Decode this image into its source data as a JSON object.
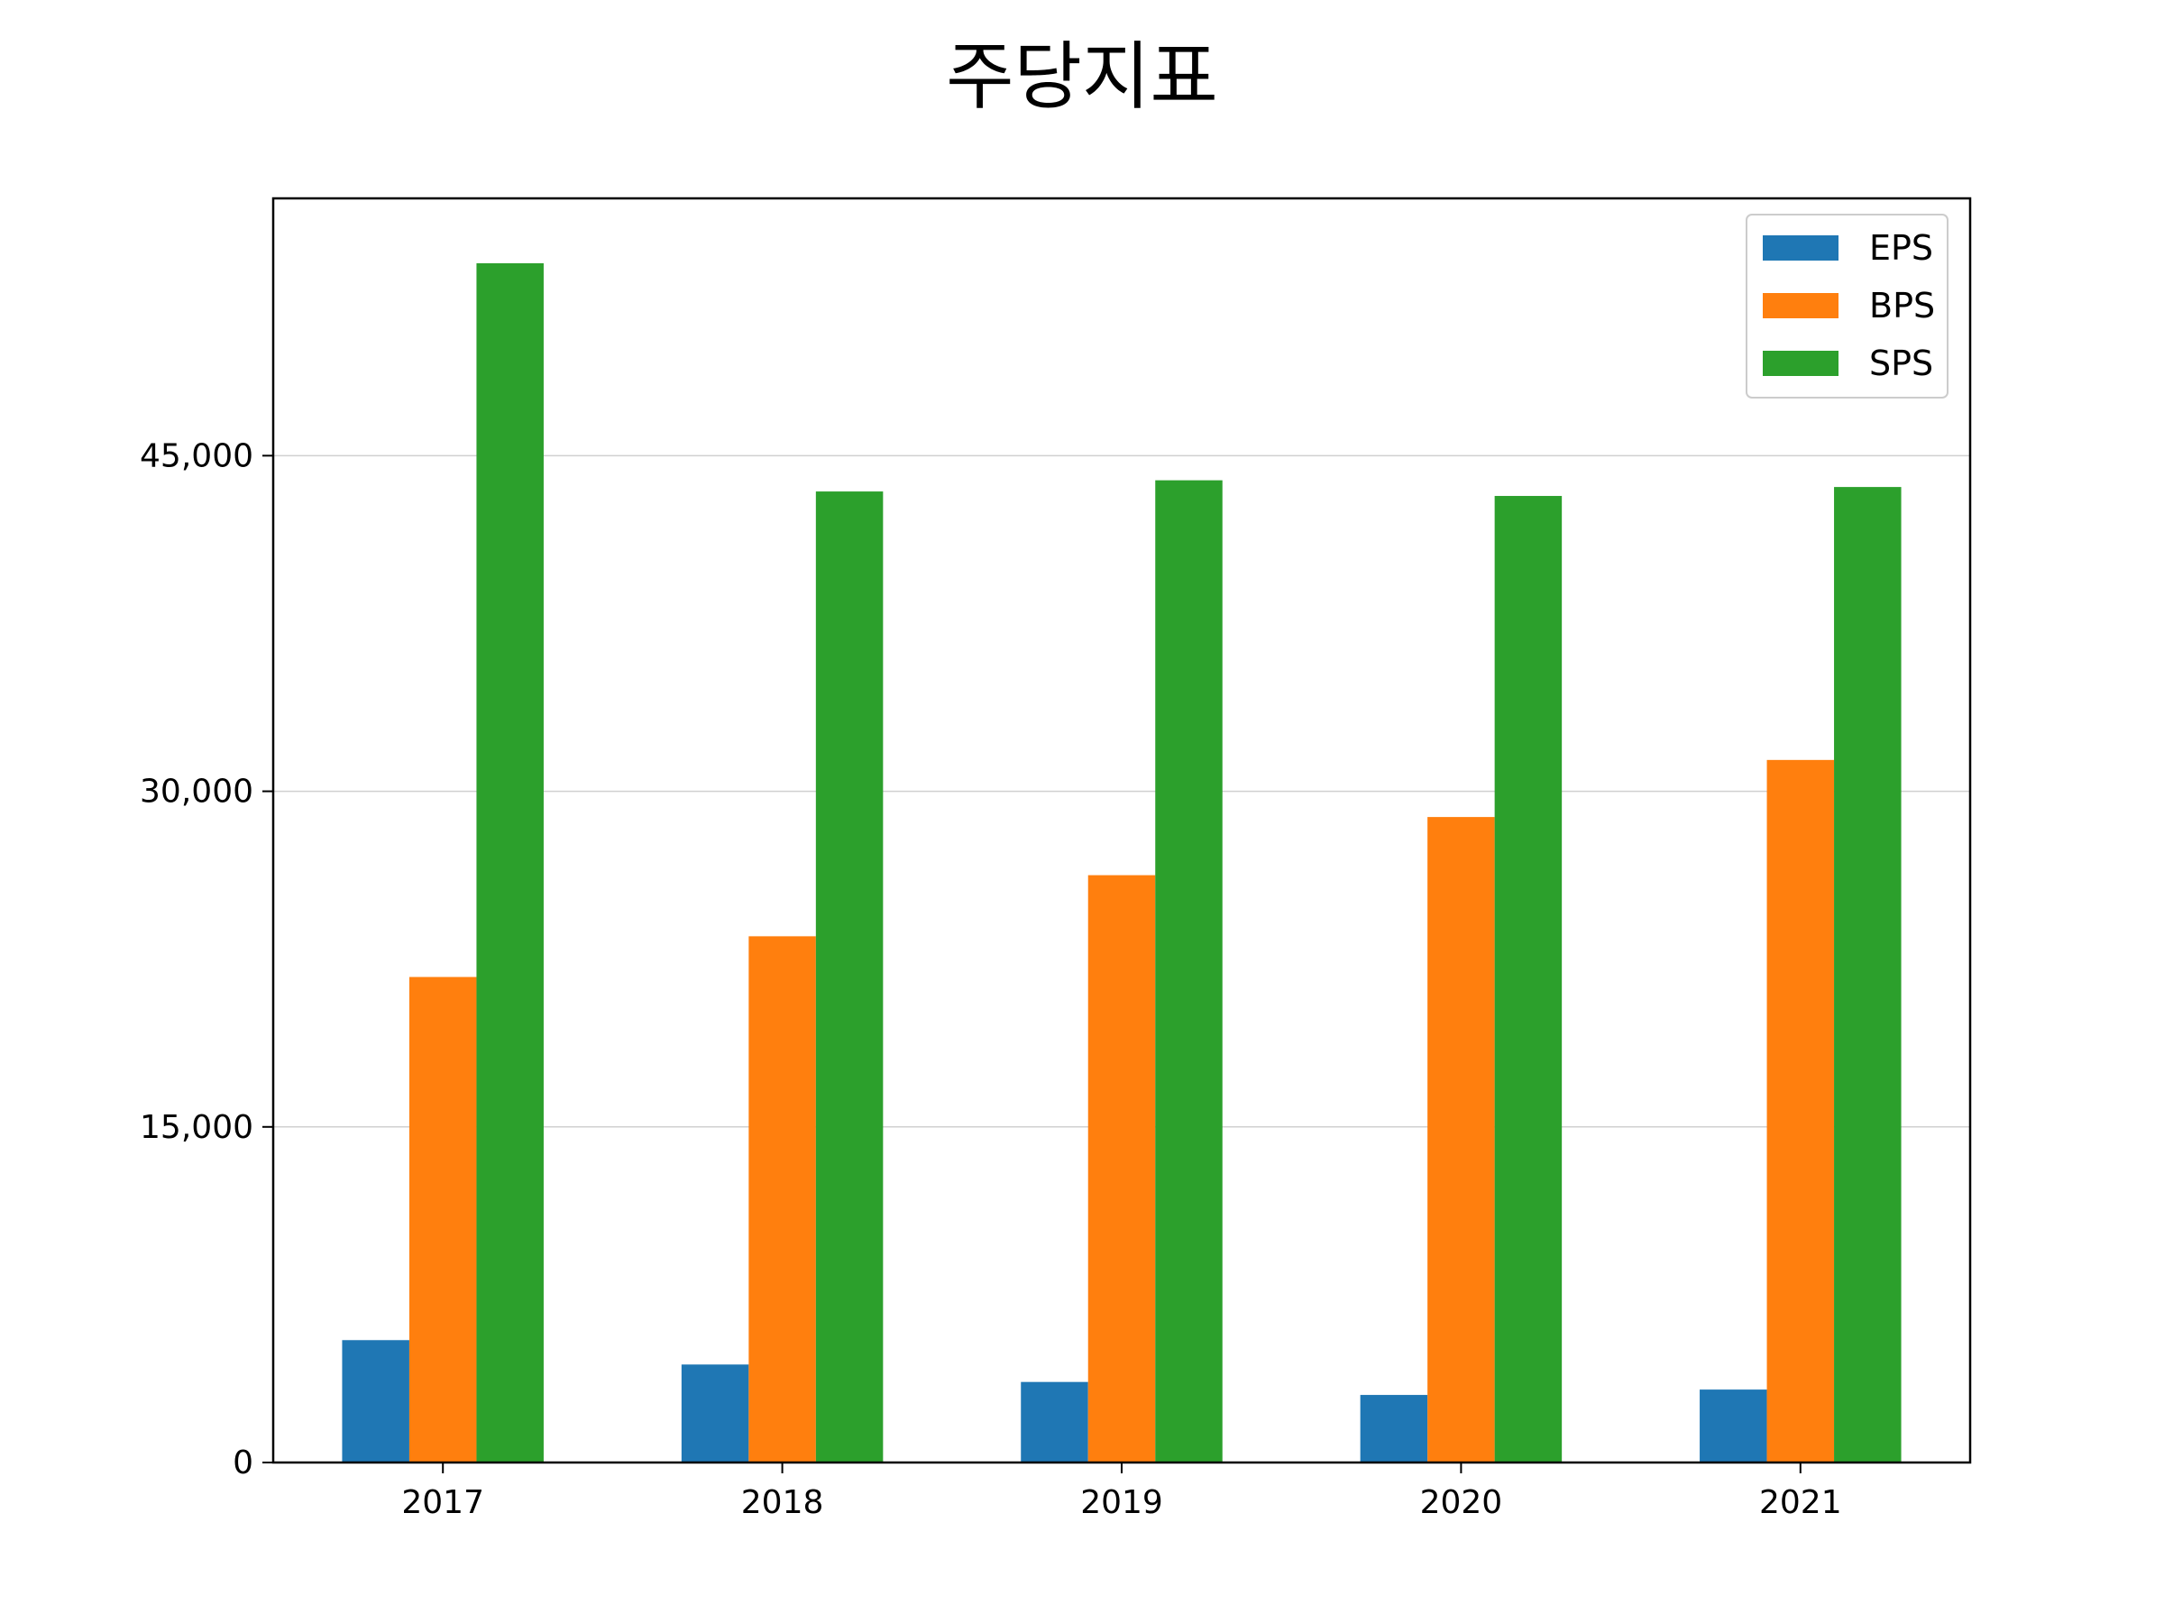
{
  "chart_data": {
    "type": "bar",
    "title": "주당지표",
    "xlabel": "",
    "ylabel": "",
    "categories": [
      "2017",
      "2018",
      "2019",
      "2020",
      "2021"
    ],
    "series": [
      {
        "name": "EPS",
        "color": "#1f77b4",
        "values": [
          5470,
          4380,
          3600,
          3020,
          3260
        ]
      },
      {
        "name": "BPS",
        "color": "#ff7f0e",
        "values": [
          21700,
          23520,
          26250,
          28850,
          31400
        ]
      },
      {
        "name": "SPS",
        "color": "#2ca02c",
        "values": [
          53600,
          43400,
          43900,
          43200,
          43600
        ]
      }
    ],
    "yticks": [
      0,
      15000,
      30000,
      45000
    ],
    "ytick_labels": [
      "0",
      "15,000",
      "30,000",
      "45,000"
    ],
    "ylim": [
      0,
      56500
    ],
    "grid": "y",
    "legend_position": "top-right"
  }
}
